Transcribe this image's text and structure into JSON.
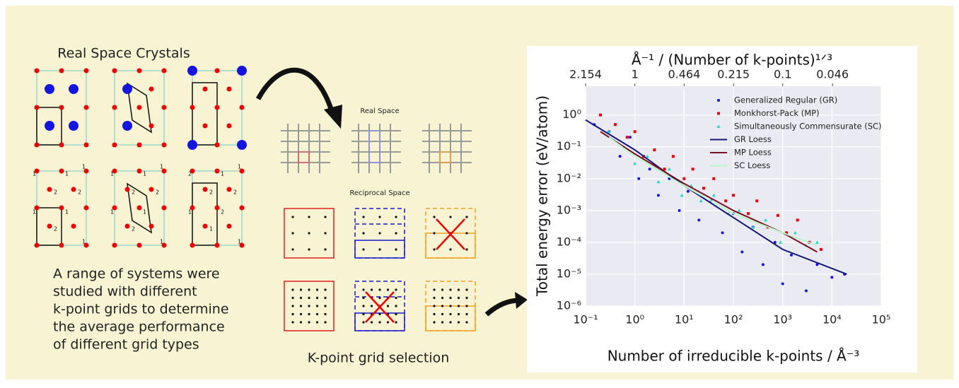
{
  "left": {
    "heading": "Real Space Crystals",
    "lower_labels": [
      [
        "1",
        "1",
        "1",
        "2",
        "2",
        "1",
        "1",
        "1",
        "2"
      ],
      [
        "1",
        "1",
        "1",
        "2",
        "2",
        "1",
        "1",
        "1",
        "2"
      ],
      [
        "2",
        "1",
        "1",
        "2",
        "2",
        "1",
        "2",
        "1",
        "1"
      ]
    ],
    "description": [
      "A range of systems were",
      "studied with different",
      "k-point grids to determine",
      "the average performance",
      "of different grid types"
    ]
  },
  "middle": {
    "real_space": "Real Space",
    "reciprocal_space": "Reciprocal Space",
    "caption": "K-point grid selection"
  },
  "chart_data": {
    "type": "scatter",
    "title": "Å⁻¹ / (Number of k-points)¹ᐟ³",
    "xlabel": "Number of irreducible k-points / Å⁻³",
    "ylabel": "Total energy error (eV/atom)",
    "xscale": "log",
    "yscale": "log",
    "grid": true,
    "legend": "upper right",
    "xlim": [
      0.1,
      100000
    ],
    "ylim": [
      1e-06,
      8
    ],
    "xticks": [
      {
        "value": 0.1,
        "label": "10⁻¹"
      },
      {
        "value": 1,
        "label": "10⁰"
      },
      {
        "value": 10,
        "label": "10¹"
      },
      {
        "value": 100,
        "label": "10²"
      },
      {
        "value": 1000,
        "label": "10³"
      },
      {
        "value": 10000,
        "label": "10⁴"
      },
      {
        "value": 100000,
        "label": "10⁵"
      }
    ],
    "yticks": [
      {
        "value": 1e-06,
        "label": "10⁻⁶"
      },
      {
        "value": 1e-05,
        "label": "10⁻⁵"
      },
      {
        "value": 0.0001,
        "label": "10⁻⁴"
      },
      {
        "value": 0.001,
        "label": "10⁻³"
      },
      {
        "value": 0.01,
        "label": "10⁻²"
      },
      {
        "value": 0.1,
        "label": "10⁻¹"
      },
      {
        "value": 1,
        "label": "10⁰"
      }
    ],
    "x2ticks": [
      2.154,
      1,
      0.464,
      0.215,
      0.1,
      0.046
    ],
    "series": [
      {
        "name": "Generalized Regular (GR)",
        "color": "#1010f0",
        "marker": "circle",
        "x": [
          0.15,
          0.3,
          0.5,
          0.8,
          1.2,
          2,
          3,
          5,
          8,
          12,
          20,
          35,
          60,
          100,
          150,
          250,
          400,
          700,
          1000,
          1500,
          3000,
          5000,
          10000,
          18000
        ],
        "values": [
          0.5,
          0.3,
          0.05,
          0.2,
          0.01,
          0.02,
          0.003,
          0.01,
          0.001,
          0.004,
          0.0005,
          0.002,
          0.0002,
          0.0008,
          5e-05,
          0.0003,
          2e-05,
          0.0001,
          5e-06,
          4e-05,
          3e-06,
          2e-05,
          8e-06,
          1e-05
        ]
      },
      {
        "name": "Monkhorst-Pack (MP)",
        "color": "#e8000b",
        "marker": "square",
        "x": [
          0.2,
          0.4,
          0.7,
          1,
          1.5,
          2.5,
          4,
          6,
          10,
          15,
          25,
          40,
          70,
          100,
          200,
          300,
          500,
          800,
          1200,
          2000,
          3500,
          6000
        ],
        "values": [
          1,
          0.5,
          0.2,
          0.3,
          0.05,
          0.08,
          0.02,
          0.05,
          0.01,
          0.02,
          0.005,
          0.01,
          0.002,
          0.003,
          0.0008,
          0.002,
          0.0003,
          0.0007,
          0.0002,
          0.0005,
          0.0001,
          6e-05
        ]
      },
      {
        "name": "Simultaneously Commensurate (SC)",
        "color": "#20d8c8",
        "marker": "triangle",
        "x": [
          0.3,
          0.6,
          1,
          1.8,
          3,
          5,
          9,
          14,
          22,
          40,
          80,
          130,
          250,
          450,
          900,
          1800,
          3000,
          5000
        ],
        "values": [
          0.3,
          0.1,
          0.03,
          0.05,
          0.008,
          0.02,
          0.003,
          0.006,
          0.002,
          0.003,
          0.0008,
          0.001,
          0.0003,
          0.0005,
          0.0001,
          0.0002,
          8e-05,
          0.0001
        ]
      },
      {
        "name": "GR Loess",
        "color": "#15157a",
        "marker": "line",
        "x": [
          0.1,
          1,
          10,
          100,
          1000,
          20000
        ],
        "values": [
          0.7,
          0.08,
          0.006,
          0.0006,
          6e-05,
          1e-05
        ]
      },
      {
        "name": "MP Loess",
        "color": "#7a1020",
        "marker": "line",
        "x": [
          0.2,
          1,
          10,
          100,
          1000,
          5000
        ],
        "values": [
          0.3,
          0.06,
          0.007,
          0.001,
          0.0002,
          5e-05
        ]
      },
      {
        "name": "SC Loess",
        "color": "#b8f5c8",
        "marker": "line",
        "x": [
          0.3,
          1,
          10,
          100,
          1000,
          5000
        ],
        "values": [
          0.2,
          0.05,
          0.006,
          0.0008,
          0.0002,
          8e-05
        ]
      }
    ]
  }
}
